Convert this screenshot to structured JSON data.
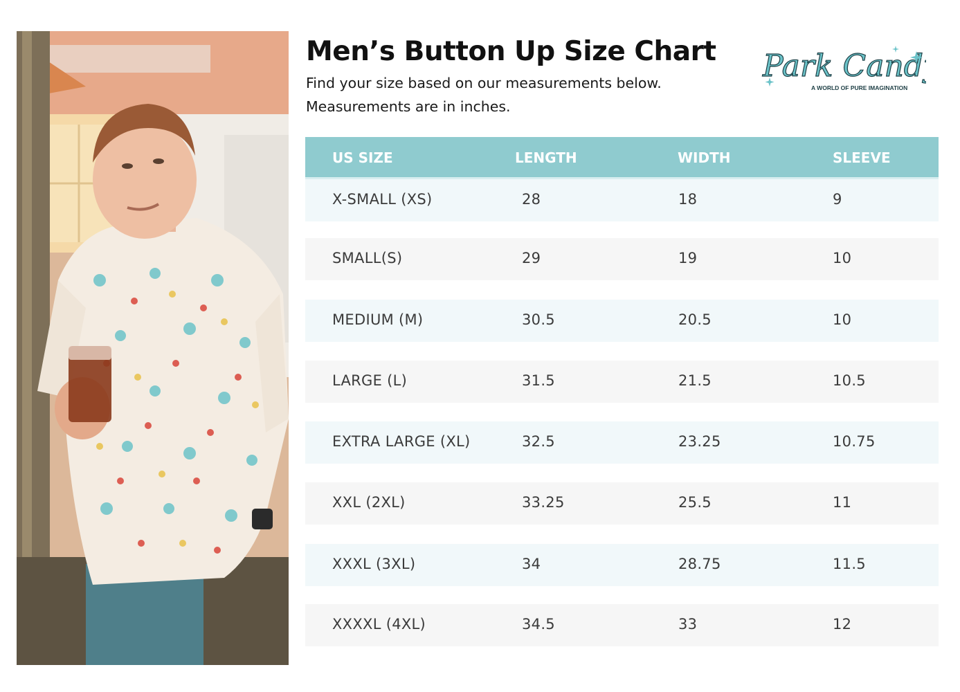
{
  "header": {
    "title": "Men’s Button Up Size Chart",
    "subtitle_line1": "Find your size based on our measurements below.",
    "subtitle_line2": "Measurements are in inches."
  },
  "logo": {
    "brand": "Park Candy",
    "tagline": "A WORLD OF PURE IMAGINATION",
    "color": "#6cc3c9"
  },
  "table": {
    "header_color": "#8fcbcf",
    "columns": [
      "US SIZE",
      "LENGTH",
      "WIDTH",
      "SLEEVE"
    ],
    "rows": [
      {
        "size": "X-SMALL (XS)",
        "length": "28",
        "width": "18",
        "sleeve": "9"
      },
      {
        "size": "SMALL(S)",
        "length": "29",
        "width": "19",
        "sleeve": "10"
      },
      {
        "size": "MEDIUM (M)",
        "length": "30.5",
        "width": "20.5",
        "sleeve": "10"
      },
      {
        "size": "LARGE (L)",
        "length": "31.5",
        "width": "21.5",
        "sleeve": "10.5"
      },
      {
        "size": "EXTRA LARGE (XL)",
        "length": "32.5",
        "width": "23.25",
        "sleeve": "10.75"
      },
      {
        "size": "XXL (2XL)",
        "length": "33.25",
        "width": "25.5",
        "sleeve": "11"
      },
      {
        "size": "XXXL (3XL)",
        "length": "34",
        "width": "28.75",
        "sleeve": "11.5"
      },
      {
        "size": "XXXXL (4XL)",
        "length": "34.5",
        "width": "33",
        "sleeve": "12"
      }
    ]
  }
}
